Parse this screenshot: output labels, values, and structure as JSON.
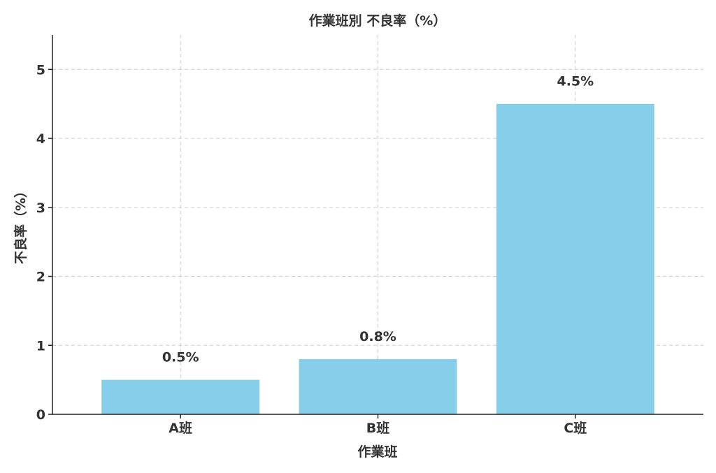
{
  "chart_data": {
    "type": "bar",
    "title": "作業班別 不良率（%）",
    "xlabel": "作業班",
    "ylabel": "不良率（%）",
    "categories": [
      "A班",
      "B班",
      "C班"
    ],
    "values": [
      0.5,
      0.8,
      4.5
    ],
    "data_labels": [
      "0.5%",
      "0.8%",
      "4.5%"
    ],
    "ylim": [
      0,
      5.5
    ],
    "yticks": [
      0,
      1,
      2,
      3,
      4,
      5
    ],
    "grid": true,
    "bar_color": "#87CEEB"
  }
}
